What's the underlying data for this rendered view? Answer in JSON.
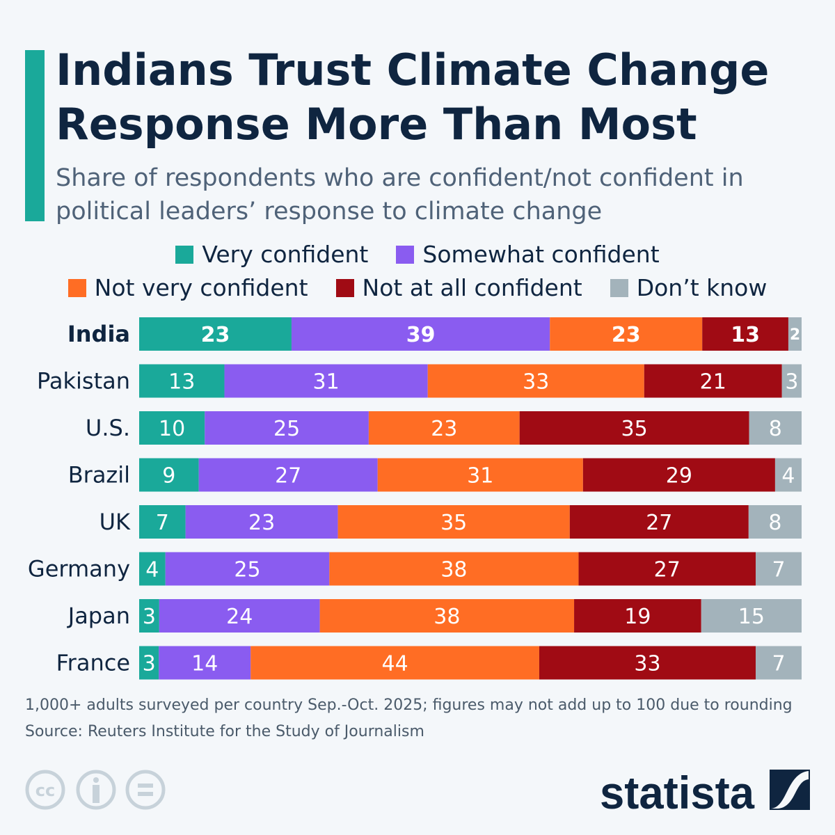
{
  "title": "Indians Trust Climate Change Response More Than Most",
  "subtitle": "Share of respondents who are confident/not confident in political leaders’ response to climate change",
  "chart_data": {
    "type": "bar",
    "orientation": "horizontal",
    "stacked": true,
    "categories": [
      "India",
      "Pakistan",
      "U.S.",
      "Brazil",
      "UK",
      "Germany",
      "Japan",
      "France"
    ],
    "highlight": "India",
    "series": [
      {
        "name": "Very confident",
        "color": "#1aa99a",
        "values": [
          23,
          13,
          10,
          9,
          7,
          4,
          3,
          3
        ]
      },
      {
        "name": "Somewhat confident",
        "color": "#8a5cf0",
        "values": [
          39,
          31,
          25,
          27,
          23,
          25,
          24,
          14
        ]
      },
      {
        "name": "Not very confident",
        "color": "#ff6d24",
        "values": [
          23,
          33,
          23,
          31,
          35,
          38,
          38,
          44
        ]
      },
      {
        "name": "Not at all confident",
        "color": "#a00b14",
        "values": [
          13,
          21,
          35,
          29,
          27,
          27,
          19,
          33
        ]
      },
      {
        "name": "Don’t know",
        "color": "#a3b3bb",
        "values": [
          2,
          3,
          8,
          4,
          8,
          7,
          15,
          7
        ]
      }
    ],
    "legend_position": "top"
  },
  "footer": {
    "note": "1,000+ adults surveyed per country Sep.-Oct. 2025; figures may not add up to 100 due to rounding",
    "source": "Source: Reuters Institute for the Study of Journalism"
  },
  "brand": "statista",
  "icons": [
    "cc-icon",
    "attribution-icon",
    "no-derivatives-icon"
  ]
}
